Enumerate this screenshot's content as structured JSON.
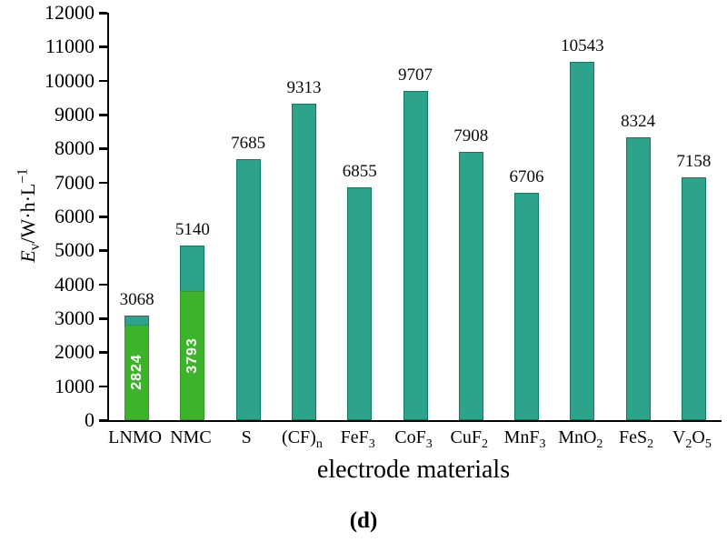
{
  "chart_data": {
    "type": "bar",
    "title": "",
    "panel_label": "(d)",
    "xlabel": "electrode materials",
    "ylabel_parts": {
      "symbol": "E",
      "symbol_sub": "v",
      "unit": "/W·h·L",
      "unit_sup": "−1"
    },
    "ylim": [
      0,
      12000
    ],
    "ytick_step": 1000,
    "categories": [
      "LNMO",
      "NMC",
      "S",
      "(CF)_n",
      "FeF_3",
      "CoF_3",
      "CuF_2",
      "MnF_3",
      "MnO_2",
      "FeS_2",
      "V_2O_5"
    ],
    "values": [
      3068,
      5140,
      7685,
      9313,
      6855,
      9707,
      7908,
      6706,
      10543,
      8324,
      7158
    ],
    "inner_values": [
      2824,
      3793,
      null,
      null,
      null,
      null,
      null,
      null,
      null,
      null,
      null
    ],
    "grid": false,
    "legend": "none",
    "colors": {
      "bar_fill": "#2ea38c",
      "bar_border": "#0f7a66",
      "inner_fill": "#3db32b",
      "inner_border": "#2f9a1e",
      "value_label": "#0a0a0a",
      "inner_label": "#ffffff",
      "axis": "#000000"
    }
  }
}
